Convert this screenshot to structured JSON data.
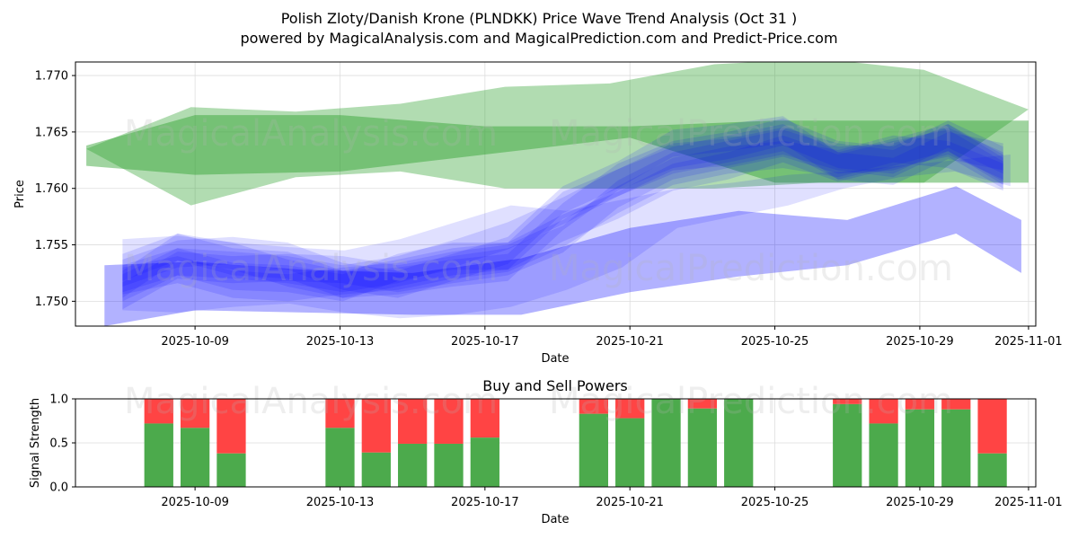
{
  "chart_data": [
    {
      "type": "area",
      "title_line1": "Polish Zloty/Danish Krone (PLNDKK) Price Wave Trend Analysis (Oct 31 )",
      "title_line2": "powered by MagicalAnalysis.com and MagicalPrediction.com and Predict-Price.com",
      "xlabel": "Date",
      "ylabel": "Price",
      "xticks": [
        "2025-10-09",
        "2025-10-13",
        "2025-10-17",
        "2025-10-21",
        "2025-10-25",
        "2025-10-29",
        "2025-11-01"
      ],
      "yticks": [
        "1.750",
        "1.755",
        "1.760",
        "1.765",
        "1.770"
      ],
      "xlim_days": [
        -3.3,
        23.2
      ],
      "ylim": [
        1.7478,
        1.7712
      ],
      "grid": true,
      "green_band_outer": {
        "color": "#2ca02c",
        "start_day": -3,
        "upper": [
          1.7635,
          1.7672,
          1.7668,
          1.7675,
          1.769,
          1.7693,
          1.771,
          1.7715,
          1.7705,
          1.767
        ],
        "lower": [
          1.7635,
          1.7585,
          1.761,
          1.7615,
          1.76,
          1.76,
          1.76,
          1.7605,
          1.7605,
          1.767
        ]
      },
      "green_band_inner": {
        "color": "#2ca02c",
        "days": [
          -3,
          0,
          4,
          8,
          12,
          16,
          20,
          23
        ],
        "upper": [
          1.7638,
          1.7665,
          1.7665,
          1.7655,
          1.7655,
          1.766,
          1.766,
          1.766
        ],
        "lower": [
          1.762,
          1.7612,
          1.7615,
          1.763,
          1.7645,
          1.7605,
          1.7605,
          1.7605
        ]
      },
      "blue_waves": {
        "color": "#0000ff",
        "start_day": -2,
        "series": [
          {
            "name": "wave-1",
            "values": [
              1.753,
              1.7548,
              1.7535,
              1.7532,
              1.7515,
              1.7525,
              1.7535,
              1.754,
              1.7585,
              1.7605,
              1.7625,
              1.7635,
              1.7645,
              1.762,
              1.7632,
              1.7645,
              1.7615
            ]
          },
          {
            "name": "wave-2",
            "values": [
              1.7505,
              1.7532,
              1.7528,
              1.753,
              1.7528,
              1.752,
              1.7528,
              1.7535,
              1.7555,
              1.7595,
              1.762,
              1.763,
              1.764,
              1.7625,
              1.7628,
              1.7642,
              1.762
            ]
          },
          {
            "name": "wave-3",
            "values": [
              1.7515,
              1.7548,
              1.754,
              1.7525,
              1.7515,
              1.7518,
              1.7525,
              1.753,
              1.7575,
              1.761,
              1.763,
              1.7638,
              1.765,
              1.763,
              1.7625,
              1.7648,
              1.7625
            ]
          },
          {
            "name": "wave-4",
            "values": [
              1.752,
              1.7535,
              1.7522,
              1.752,
              1.7512,
              1.753,
              1.754,
              1.754,
              1.7565,
              1.7585,
              1.761,
              1.762,
              1.7635,
              1.7618,
              1.763,
              1.764,
              1.7612
            ]
          },
          {
            "name": "wave-5",
            "values": [
              1.7525,
              1.7542,
              1.7545,
              1.754,
              1.7522,
              1.7515,
              1.753,
              1.7545,
              1.759,
              1.7612,
              1.764,
              1.7645,
              1.7652,
              1.762,
              1.7615,
              1.7638,
              1.7628
            ]
          },
          {
            "name": "wave-6",
            "values": [
              1.7518,
              1.7528,
              1.7515,
              1.7512,
              1.7518,
              1.7522,
              1.7532,
              1.7538,
              1.756,
              1.759,
              1.7615,
              1.7625,
              1.763,
              1.7622,
              1.7635,
              1.763,
              1.761
            ]
          },
          {
            "name": "wave-7",
            "values": [
              1.7512,
              1.7535,
              1.7532,
              1.7528,
              1.752,
              1.7528,
              1.7542,
              1.7558,
              1.758,
              1.7605,
              1.7628,
              1.7632,
              1.7642,
              1.7628,
              1.7622,
              1.7645,
              1.7618
            ]
          }
        ],
        "halfwidth": 0.0012
      },
      "blue_light_band": {
        "color": "#0000ff",
        "start_day": -2,
        "upper": [
          1.7555,
          1.7558,
          1.7552,
          1.7548,
          1.7545,
          1.7555,
          1.757,
          1.7585,
          1.758,
          1.759,
          1.76,
          1.7605,
          1.7612,
          1.7615,
          1.762,
          1.7625,
          1.763
        ],
        "lower": [
          1.7492,
          1.749,
          1.7495,
          1.7498,
          1.749,
          1.7485,
          1.7488,
          1.7495,
          1.751,
          1.753,
          1.7565,
          1.7575,
          1.7585,
          1.76,
          1.761,
          1.7615,
          1.7602
        ]
      },
      "blue_lower_band": {
        "color": "#0000ff",
        "days": [
          -2.5,
          0,
          3,
          6,
          9,
          12,
          15,
          18,
          21,
          22.8
        ],
        "upper": [
          1.7532,
          1.7535,
          1.7528,
          1.7525,
          1.7538,
          1.7565,
          1.758,
          1.7572,
          1.7602,
          1.7572
        ],
        "lower": [
          1.7478,
          1.7492,
          1.749,
          1.7488,
          1.7488,
          1.7508,
          1.7522,
          1.7532,
          1.756,
          1.7525
        ]
      }
    },
    {
      "type": "bar",
      "title": "Buy and Sell Powers",
      "xlabel": "Date",
      "ylabel": "Signal Strength",
      "xticks": [
        "2025-10-09",
        "2025-10-13",
        "2025-10-17",
        "2025-10-21",
        "2025-10-25",
        "2025-10-29",
        "2025-11-01"
      ],
      "yticks": [
        "0.0",
        "0.5",
        "1.0"
      ],
      "ylim": [
        0,
        1
      ],
      "colors": {
        "buy": "#4caa4c",
        "sell": "#ff4444"
      },
      "days": [
        -1,
        0,
        1,
        4,
        5,
        6,
        7,
        8,
        11,
        12,
        13,
        14,
        15,
        18,
        19,
        20,
        21,
        22
      ],
      "buy": [
        0.72,
        0.67,
        0.38,
        0.67,
        0.39,
        0.49,
        0.49,
        0.56,
        0.83,
        0.78,
        1.0,
        0.89,
        1.0,
        0.94,
        0.72,
        0.88,
        0.88,
        0.38
      ]
    }
  ],
  "watermarks": [
    "MagicalAnalysis.com",
    "MagicalPrediction.com"
  ]
}
